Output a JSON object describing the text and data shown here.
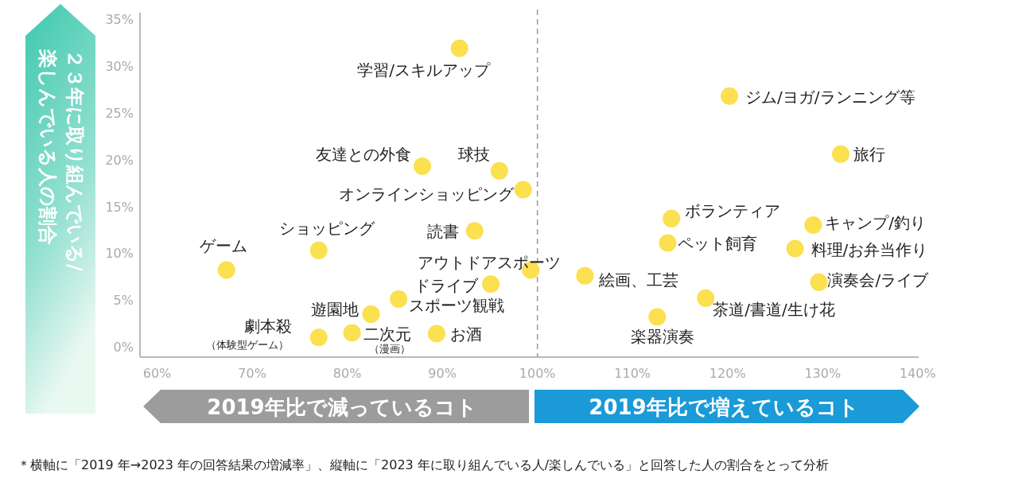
{
  "chart_data": {
    "type": "scatter",
    "ylabel": "２３年に取り組んでいる/楽しんでいる人の割合",
    "xlim": [
      58.2,
      140.1
    ],
    "ylim": [
      -1.1,
      35.7
    ],
    "xticks": [
      {
        "value": 60,
        "label": "60%"
      },
      {
        "value": 70,
        "label": "70%"
      },
      {
        "value": 80,
        "label": "80%"
      },
      {
        "value": 90,
        "label": "90%"
      },
      {
        "value": 100,
        "label": "100%"
      },
      {
        "value": 110,
        "label": "110%"
      },
      {
        "value": 120,
        "label": "120%"
      },
      {
        "value": 130,
        "label": "130%"
      },
      {
        "value": 140,
        "label": "140%"
      }
    ],
    "yticks": [
      {
        "value": 0,
        "label": "0%"
      },
      {
        "value": 5,
        "label": "5%"
      },
      {
        "value": 10,
        "label": "10%"
      },
      {
        "value": 15,
        "label": "15%"
      },
      {
        "value": 20,
        "label": "20%"
      },
      {
        "value": 25,
        "label": "25%"
      },
      {
        "value": 30,
        "label": "30%"
      },
      {
        "value": 35,
        "label": "35%"
      }
    ],
    "grid": false,
    "marker": "circle",
    "ref_lines": [
      {
        "axis": "x",
        "value": 100,
        "color": "#999999",
        "line_style": "dashed"
      }
    ],
    "series": [
      {
        "name": "学習/スキルアップ",
        "color": "#fbe04f",
        "x": [
          91.8
        ],
        "values": [
          31.9
        ]
      },
      {
        "name": "友達との外食",
        "color": "#fbe04f",
        "x": [
          87.9
        ],
        "values": [
          19.3
        ]
      },
      {
        "name": "球技",
        "color": "#fbe04f",
        "x": [
          96.0
        ],
        "values": [
          18.8
        ]
      },
      {
        "name": "オンラインショッピング",
        "color": "#fbe04f",
        "x": [
          98.5
        ],
        "values": [
          16.8
        ]
      },
      {
        "name": "読書",
        "color": "#fbe04f",
        "x": [
          93.4
        ],
        "values": [
          12.4
        ]
      },
      {
        "name": "ショッピング",
        "color": "#fbe04f",
        "x": [
          77.0
        ],
        "values": [
          10.3
        ]
      },
      {
        "name": "ゲーム",
        "color": "#fbe04f",
        "x": [
          67.3
        ],
        "values": [
          8.2
        ]
      },
      {
        "name": "アウトドアスポーツ",
        "color": "#fbe04f",
        "x": [
          99.3
        ],
        "values": [
          8.2
        ]
      },
      {
        "name": "ドライブ",
        "color": "#fbe04f",
        "x": [
          95.1
        ],
        "values": [
          6.7
        ]
      },
      {
        "name": "スポーツ観戦",
        "color": "#fbe04f",
        "x": [
          85.4
        ],
        "values": [
          5.1
        ]
      },
      {
        "name": "遊園地",
        "color": "#fbe04f",
        "x": [
          82.5
        ],
        "values": [
          3.5
        ]
      },
      {
        "name": "劇本殺（体験型ゲーム）",
        "color": "#fbe04f",
        "x": [
          77.0
        ],
        "values": [
          1.0
        ]
      },
      {
        "name": "二次元（漫画）",
        "color": "#fbe04f",
        "x": [
          80.5
        ],
        "values": [
          1.5
        ]
      },
      {
        "name": "お酒",
        "color": "#fbe04f",
        "x": [
          89.4
        ],
        "values": [
          1.4
        ]
      },
      {
        "name": "絵画、工芸",
        "color": "#fbe04f",
        "x": [
          105.0
        ],
        "values": [
          7.6
        ]
      },
      {
        "name": "ボランティア",
        "color": "#fbe04f",
        "x": [
          114.1
        ],
        "values": [
          13.7
        ]
      },
      {
        "name": "ペット飼育",
        "color": "#fbe04f",
        "x": [
          113.7
        ],
        "values": [
          11.1
        ]
      },
      {
        "name": "楽器演奏",
        "color": "#fbe04f",
        "x": [
          112.6
        ],
        "values": [
          3.2
        ]
      },
      {
        "name": "茶道/書道/生け花",
        "color": "#fbe04f",
        "x": [
          117.7
        ],
        "values": [
          5.2
        ]
      },
      {
        "name": "ジム/ヨガ/ランニング等",
        "color": "#fbe04f",
        "x": [
          120.2
        ],
        "values": [
          26.8
        ]
      },
      {
        "name": "旅行",
        "color": "#fbe04f",
        "x": [
          131.9
        ],
        "values": [
          20.6
        ]
      },
      {
        "name": "キャンプ/釣り",
        "color": "#fbe04f",
        "x": [
          129.0
        ],
        "values": [
          13.0
        ]
      },
      {
        "name": "料理/お弁当作り",
        "color": "#fbe04f",
        "x": [
          127.1
        ],
        "values": [
          10.5
        ]
      },
      {
        "name": "演奏会/ライブ",
        "color": "#fbe04f",
        "x": [
          129.6
        ],
        "values": [
          6.9
        ]
      }
    ],
    "annotations": [
      "2019年比で減っているコト",
      "2019年比で増えているコト",
      "＊横軸に「2019 年→2023 年の回答結果の増減率」、縦軸に「2023 年に取り組んでいる人/楽しんでいる」と回答した人の割合をとって分析"
    ]
  }
}
